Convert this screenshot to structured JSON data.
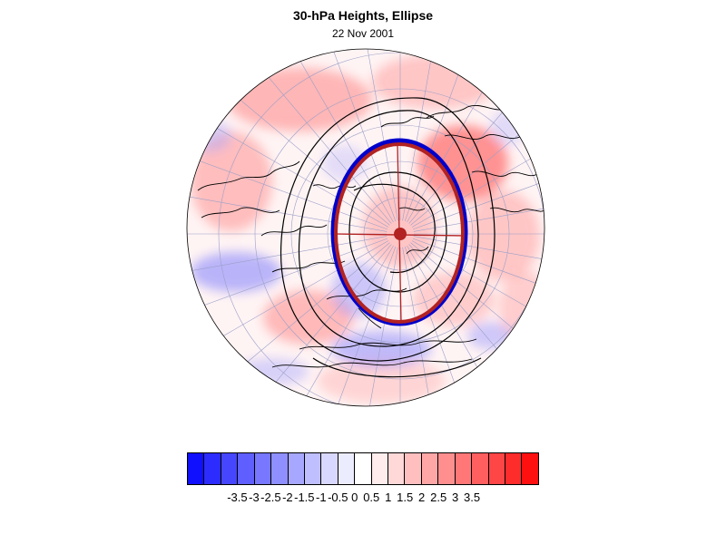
{
  "title": "30-hPa Heights, Ellipse",
  "subtitle": "22 Nov 2001",
  "colorbar": {
    "colors": [
      "#1010ff",
      "#2c2cff",
      "#4646ff",
      "#5f5fff",
      "#7777ff",
      "#8f8fff",
      "#a7a7ff",
      "#bfbfff",
      "#d8d8ff",
      "#ececff",
      "#ffffff",
      "#ffecec",
      "#ffd8d8",
      "#ffbfbf",
      "#ffa7a7",
      "#ff8f8f",
      "#ff7777",
      "#ff5f5f",
      "#ff4646",
      "#ff2c2c",
      "#ff1010"
    ],
    "labels": [
      {
        "text": "-3.5",
        "value": -3.5
      },
      {
        "text": "-3",
        "value": -3
      },
      {
        "text": "-2.5",
        "value": -2.5
      },
      {
        "text": "-2",
        "value": -2
      },
      {
        "text": "-1.5",
        "value": -1.5
      },
      {
        "text": "-1",
        "value": -1
      },
      {
        "text": "-0.5",
        "value": -0.5
      },
      {
        "text": "0",
        "value": 0
      },
      {
        "text": "0.5",
        "value": 0.5
      },
      {
        "text": "1",
        "value": 1
      },
      {
        "text": "1.5",
        "value": 1.5
      },
      {
        "text": "2",
        "value": 2
      },
      {
        "text": "2.5",
        "value": 2.5
      },
      {
        "text": "3",
        "value": 3
      },
      {
        "text": "3.5",
        "value": 3.5
      }
    ],
    "range": [
      -4,
      4
    ]
  },
  "colors": {
    "ellipse_fit": "#b22222",
    "ellipse_obs": "#0000cc",
    "anomaly_pos": "#ff5a5a",
    "anomaly_neg": "#6a6aff"
  }
}
